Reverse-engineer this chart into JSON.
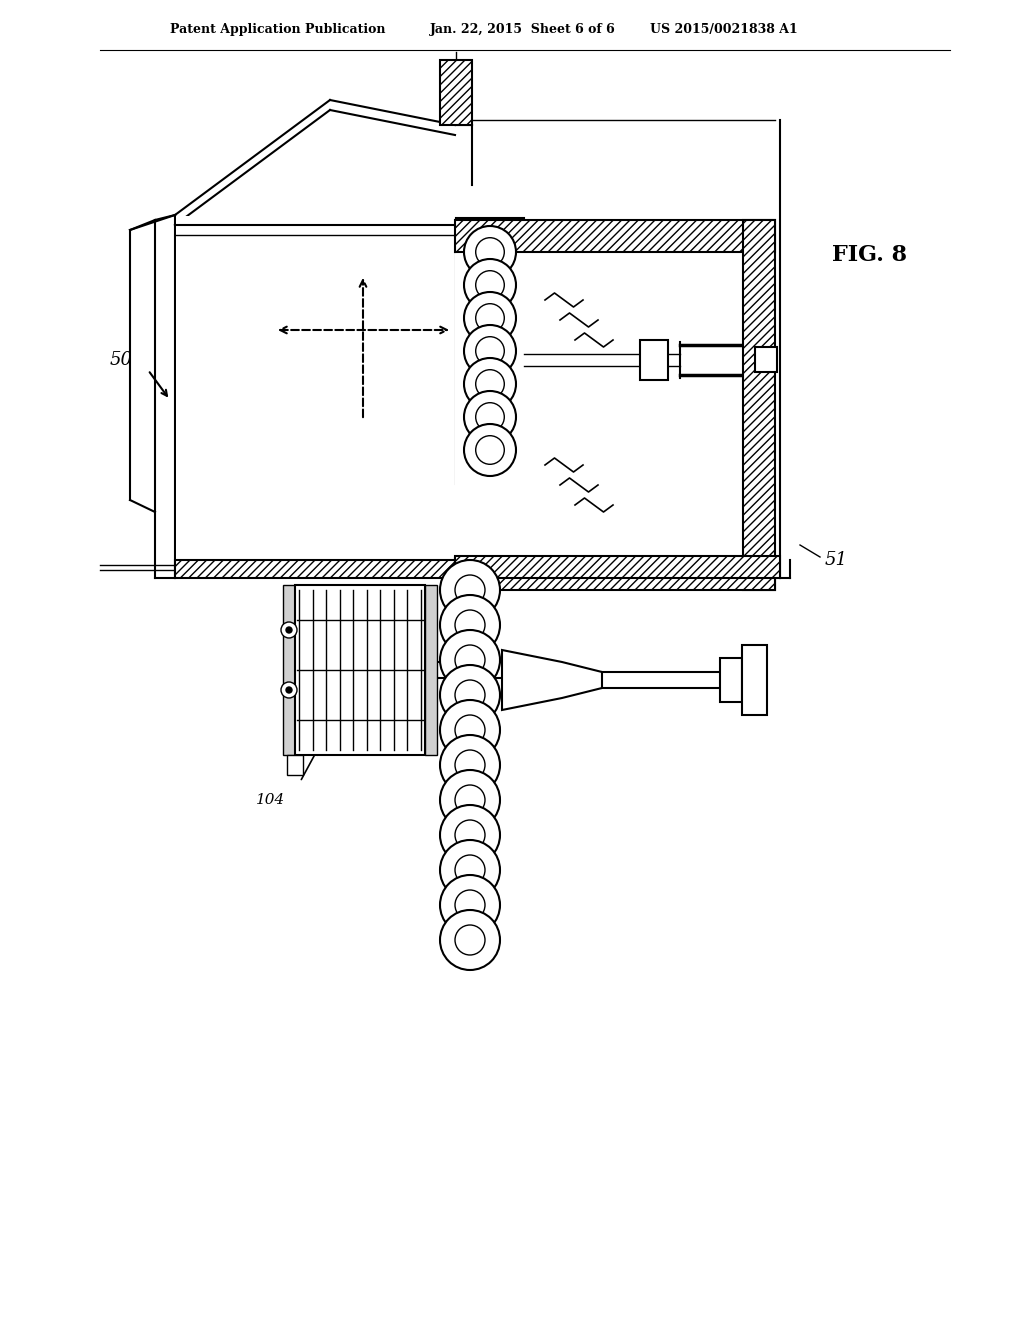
{
  "bg_color": "#ffffff",
  "header_text_left": "Patent Application Publication",
  "header_text_mid": "Jan. 22, 2015  Sheet 6 of 6",
  "header_text_right": "US 2015/0021838 A1",
  "fig_label": "FIG. 8",
  "label_50": "50",
  "label_51": "51",
  "label_104": "104"
}
